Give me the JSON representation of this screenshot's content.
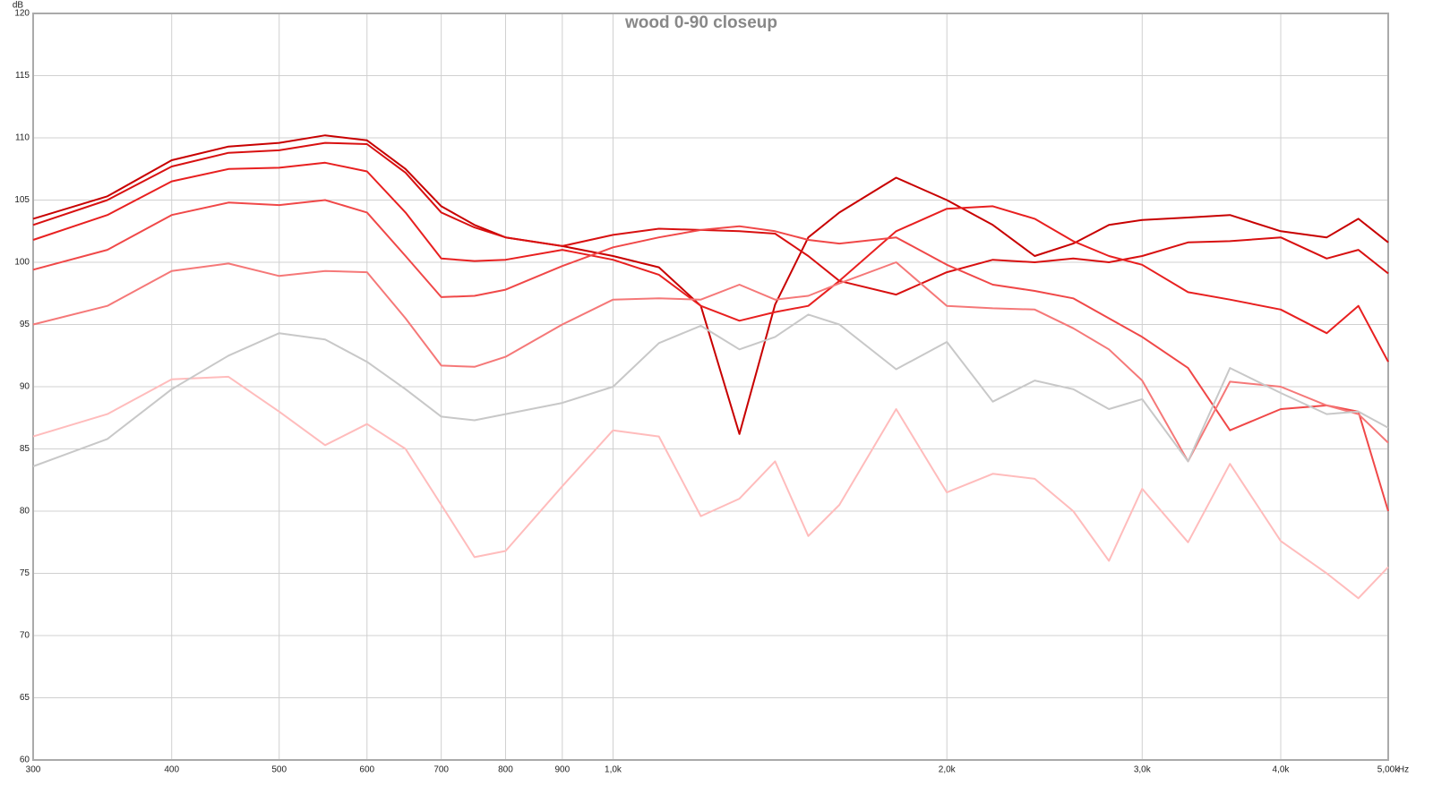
{
  "chart_data": {
    "type": "line",
    "title": "wood 0-90 closeup",
    "x_label": "Hz",
    "y_label": "dB",
    "xscale": "log",
    "grid": true,
    "x": [
      300,
      350,
      400,
      450,
      500,
      550,
      600,
      650,
      700,
      750,
      800,
      900,
      1000,
      1100,
      1200,
      1300,
      1400,
      1500,
      1600,
      1800,
      2000,
      2200,
      2400,
      2600,
      2800,
      3000,
      3300,
      3600,
      4000,
      4400,
      4700,
      5000
    ],
    "xlim": [
      300,
      5000
    ],
    "ylim": [
      60,
      120
    ],
    "xticks": [
      300,
      400,
      500,
      600,
      700,
      800,
      900,
      {
        "value": 1000,
        "label": "1,0k"
      },
      {
        "value": 2000,
        "label": "2,0k"
      },
      {
        "value": 3000,
        "label": "3,0k"
      },
      {
        "value": 4000,
        "label": "4,0k"
      },
      {
        "value": 5000,
        "label": "5,00k"
      }
    ],
    "yticks": [
      60,
      65,
      70,
      75,
      80,
      85,
      90,
      95,
      100,
      105,
      110,
      115,
      120
    ],
    "series": [
      {
        "color": "#c80000",
        "values": [
          103.5,
          105.3,
          108.2,
          109.3,
          109.6,
          110.2,
          109.8,
          107.5,
          104.5,
          103,
          102,
          101.3,
          100.5,
          99.6,
          96.5,
          86.2,
          96.6,
          102,
          104,
          106.8,
          105,
          103,
          100.5,
          101.5,
          103,
          103.4,
          103.6,
          103.8,
          102.5,
          102,
          103.5,
          101.6
        ]
      },
      {
        "color": "#d81010",
        "values": [
          103,
          105,
          107.7,
          108.8,
          109,
          109.6,
          109.5,
          107.2,
          104,
          102.8,
          102,
          101.3,
          102.2,
          102.7,
          102.6,
          102.5,
          102.3,
          100.5,
          98.5,
          97.4,
          99.2,
          100.2,
          100,
          100.3,
          100,
          100.5,
          101.6,
          101.7,
          102,
          100.3,
          101,
          99.1
        ]
      },
      {
        "color": "#e82020",
        "values": [
          101.8,
          103.8,
          106.5,
          107.5,
          107.6,
          108,
          107.3,
          104,
          100.3,
          100.1,
          100.2,
          101,
          100.2,
          99,
          96.5,
          95.3,
          96,
          96.5,
          98.5,
          102.5,
          104.3,
          104.5,
          103.5,
          101.7,
          100.5,
          99.8,
          97.6,
          97,
          96.2,
          94.3,
          96.5,
          92
        ]
      },
      {
        "color": "#f04848",
        "values": [
          99.4,
          101,
          103.8,
          104.8,
          104.6,
          105,
          104,
          100.5,
          97.2,
          97.3,
          97.8,
          99.7,
          101.2,
          102,
          102.6,
          102.9,
          102.5,
          101.8,
          101.5,
          102,
          99.8,
          98.2,
          97.7,
          97.1,
          95.5,
          94,
          91.5,
          86.5,
          88.2,
          88.5,
          88,
          80
        ]
      },
      {
        "color": "#f57878",
        "values": [
          95,
          96.5,
          99.3,
          99.9,
          98.9,
          99.3,
          99.2,
          95.5,
          91.7,
          91.6,
          92.4,
          95,
          97,
          97.1,
          97,
          98.2,
          97,
          97.3,
          98.3,
          100,
          96.5,
          96.3,
          96.2,
          94.7,
          93,
          90.5,
          84,
          90.4,
          90,
          88.5,
          87.8,
          85.5
        ]
      },
      {
        "color": "#ffbcbc",
        "values": [
          86,
          87.8,
          90.6,
          90.8,
          88,
          85.3,
          87,
          85,
          80.5,
          76.3,
          76.8,
          82,
          86.5,
          86,
          79.6,
          81,
          84,
          78,
          80.5,
          88.2,
          81.5,
          83,
          82.6,
          80,
          76,
          81.8,
          77.5,
          83.8,
          77.6,
          75,
          73,
          75.5
        ]
      },
      {
        "color": "#c8c8c8",
        "values": [
          83.6,
          85.8,
          89.8,
          92.5,
          94.3,
          93.8,
          92,
          89.8,
          87.6,
          87.3,
          87.8,
          88.7,
          90,
          93.5,
          94.9,
          93,
          94,
          95.8,
          95,
          91.4,
          93.6,
          88.8,
          90.5,
          89.8,
          88.2,
          89,
          84,
          91.5,
          89.5,
          87.8,
          88,
          86.7
        ]
      }
    ]
  }
}
